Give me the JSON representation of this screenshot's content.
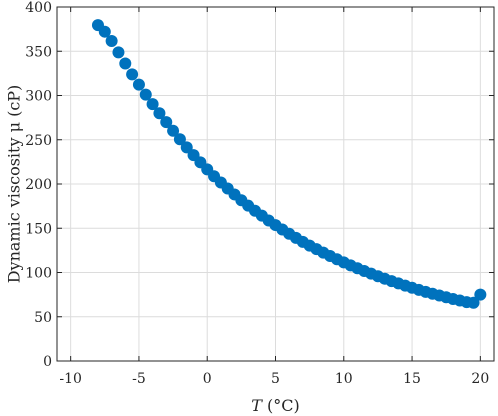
{
  "chart_data": {
    "type": "scatter",
    "xlabel_prefix": "T",
    "xlabel_suffix": " (°C)",
    "ylabel": "Dynamic viscosity μ (cP)",
    "xlim": [
      -11,
      21
    ],
    "ylim": [
      0,
      400
    ],
    "xticks": [
      -10,
      -5,
      0,
      5,
      10,
      15,
      20
    ],
    "xtick_labels": [
      "-10",
      "-5",
      "0",
      "5",
      "10",
      "15",
      "20"
    ],
    "yticks": [
      0,
      50,
      100,
      150,
      200,
      250,
      300,
      350,
      400
    ],
    "ytick_labels": [
      "0",
      "50",
      "100",
      "150",
      "200",
      "250",
      "300",
      "350",
      "400"
    ],
    "grid": true,
    "marker_color": "#0072BD",
    "series": [
      {
        "x": [
          -8.0,
          -7.5,
          -7.0,
          -6.5,
          -6.0,
          -5.5,
          -5.0,
          -4.5,
          -4.0,
          -3.5,
          -3.0,
          -2.5,
          -2.0,
          -1.5,
          -1.0,
          -0.5,
          0.0,
          0.5,
          1.0,
          1.5,
          2.0,
          2.5,
          3.0,
          3.5,
          4.0,
          4.5,
          5.0,
          5.5,
          6.0,
          6.5,
          7.0,
          7.5,
          8.0,
          8.5,
          9.0,
          9.5,
          10.0,
          10.5,
          11.0,
          11.5,
          12.0,
          12.5,
          13.0,
          13.5,
          14.0,
          14.5,
          15.0,
          15.5,
          16.0,
          16.5,
          17.0,
          17.5,
          18.0,
          18.5,
          19.0,
          19.5,
          20.0
        ],
        "y": [
          379.5,
          372.1,
          361.6,
          348.7,
          336.1,
          323.9,
          312.3,
          301.0,
          290.2,
          279.9,
          269.9,
          260.2,
          250.6,
          241.4,
          232.6,
          224.5,
          216.5,
          208.8,
          201.7,
          194.9,
          188.2,
          181.7,
          175.5,
          169.8,
          164.3,
          158.8,
          153.6,
          148.6,
          143.8,
          139.1,
          134.6,
          130.4,
          126.4,
          122.4,
          118.6,
          115.0,
          111.5,
          108.1,
          104.8,
          101.7,
          98.7,
          95.8,
          93.0,
          90.3,
          87.7,
          85.2,
          82.7,
          80.3,
          78.1,
          76.0,
          74.0,
          72.0,
          70.1,
          68.3,
          66.5,
          65.8,
          75.0
        ]
      }
    ]
  }
}
